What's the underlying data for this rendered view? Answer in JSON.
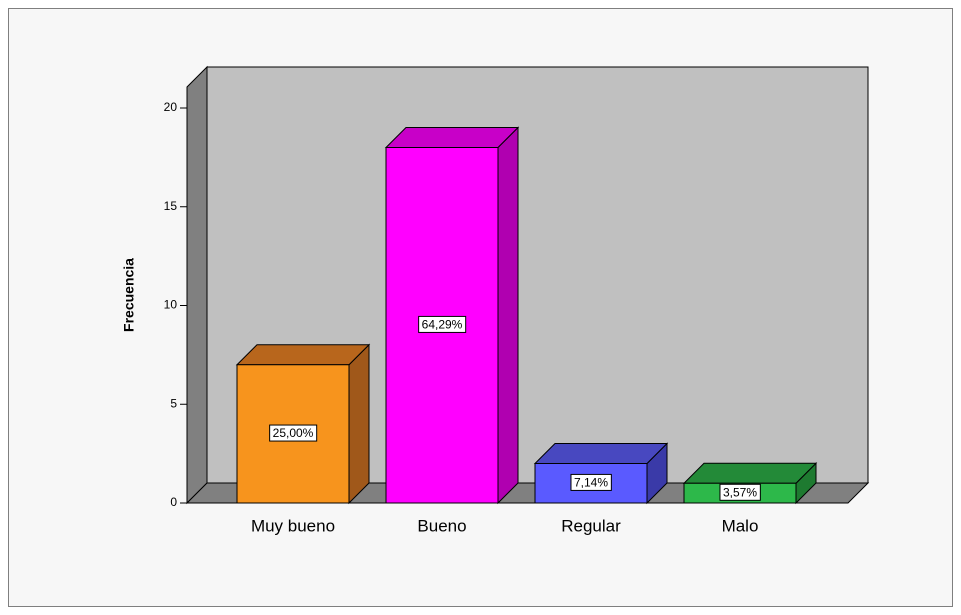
{
  "chart_data": {
    "type": "bar3d",
    "y_label": "Frecuencia",
    "categories": [
      "Muy bueno",
      "Bueno",
      "Regular",
      "Malo"
    ],
    "values": [
      7,
      18,
      2,
      1
    ],
    "data_labels": [
      "25,00%",
      "64,29%",
      "7,14%",
      "3,57%"
    ],
    "colors": [
      "#f7941d",
      "#ff00ff",
      "#5a5aff",
      "#2db84a"
    ],
    "side_colors": [
      "#a0581a",
      "#b000b0",
      "#3a3aa8",
      "#1e7a30"
    ],
    "top_colors": [
      "#b8661c",
      "#c800c8",
      "#4848c0",
      "#238a38"
    ],
    "ylim": [
      0,
      20
    ],
    "yticks": [
      0,
      5,
      10,
      15,
      20
    ]
  }
}
